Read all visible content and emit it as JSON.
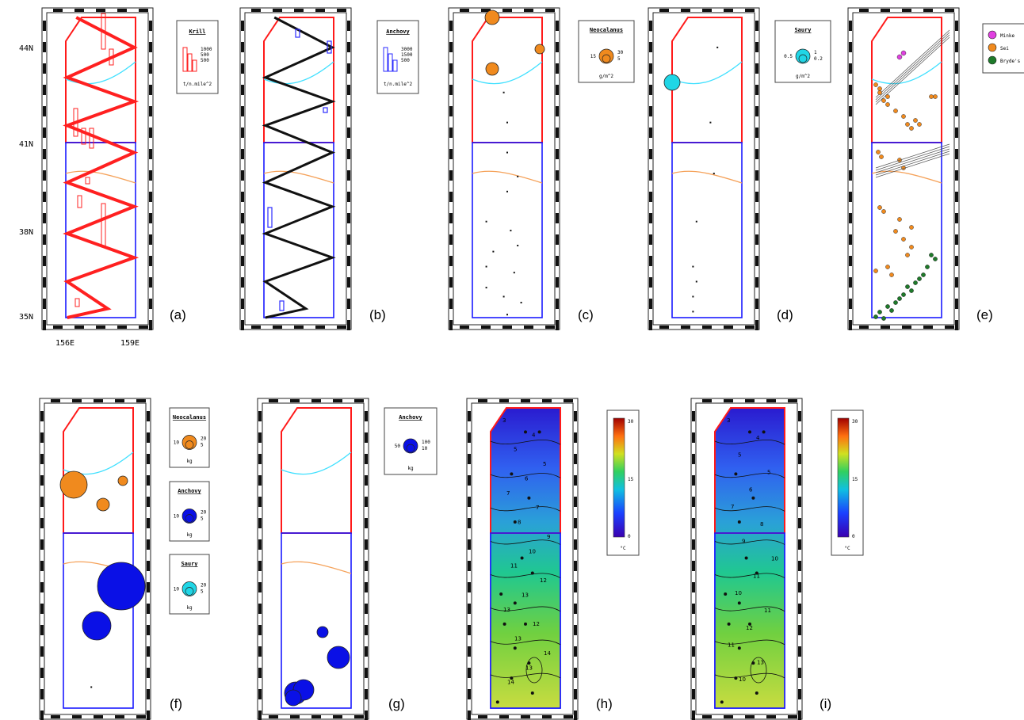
{
  "panel_labels": [
    "(a)",
    "(b)",
    "(c)",
    "(d)",
    "(e)",
    "(f)",
    "(g)",
    "(h)",
    "(i)"
  ],
  "axes": {
    "lat_ticks": [
      "44N",
      "41N",
      "38N",
      "35N"
    ],
    "lon_ticks": [
      "156E",
      "159E"
    ]
  },
  "colors": {
    "north_box": "#ff1a1a",
    "south_box": "#1a1aff",
    "krill": "#ff2020",
    "anchovy": "#2b2bff",
    "track": "#111111",
    "front_cyan": "#40e0ff",
    "front_orange": "#f5a25a",
    "neocalanus": "#f08a1e",
    "saury": "#20d6e6",
    "minke": "#e040e0",
    "sei": "#f08a1e",
    "bryde": "#1e7a2a"
  },
  "legends": {
    "krill": {
      "title": "Krill",
      "values": [
        "1000",
        "500",
        "500"
      ],
      "unit": "t/n.mile^2"
    },
    "anchovy_b": {
      "title": "Anchovy",
      "values": [
        "3000",
        "1500",
        "500"
      ],
      "unit": "t/n.mile^2"
    },
    "neocalanus_c": {
      "title": "Neocalanus",
      "left": "15",
      "values": [
        "30",
        "5"
      ],
      "unit": "g/m^2"
    },
    "saury_d": {
      "title": "Saury",
      "left": "0.5",
      "values": [
        "1",
        "0.2"
      ],
      "unit": "g/m^2"
    },
    "whales": {
      "items": [
        "Minke",
        "Sei",
        "Bryde's"
      ]
    },
    "neocalanus_f": {
      "title": "Neocalanus",
      "left": "10",
      "values": [
        "20",
        "5"
      ],
      "unit": "kg"
    },
    "anchovy_f": {
      "title": "Anchovy",
      "left": "10",
      "values": [
        "20",
        "5"
      ],
      "unit": "kg"
    },
    "saury_f": {
      "title": "Saury",
      "left": "10",
      "values": [
        "20",
        "5"
      ],
      "unit": "kg"
    },
    "anchovy_g": {
      "title": "Anchovy",
      "left": "50",
      "values": [
        "100",
        "10"
      ],
      "unit": "kg"
    },
    "sst_h": {
      "max": "30",
      "mid": "15",
      "min": "0",
      "unit": "°C"
    },
    "sst_i": {
      "max": "30",
      "mid": "15",
      "min": "0",
      "unit": "°C"
    }
  },
  "contour_labels_h": [
    "3",
    "4",
    "5",
    "5",
    "6",
    "7",
    "7",
    "8",
    "9",
    "10",
    "11",
    "12",
    "13",
    "13",
    "12",
    "13",
    "14",
    "13",
    "14"
  ],
  "contour_labels_i": [
    "3",
    "4",
    "5",
    "5",
    "6",
    "7",
    "8",
    "9",
    "10",
    "11",
    "10",
    "11",
    "12",
    "11",
    "13",
    "10"
  ]
}
